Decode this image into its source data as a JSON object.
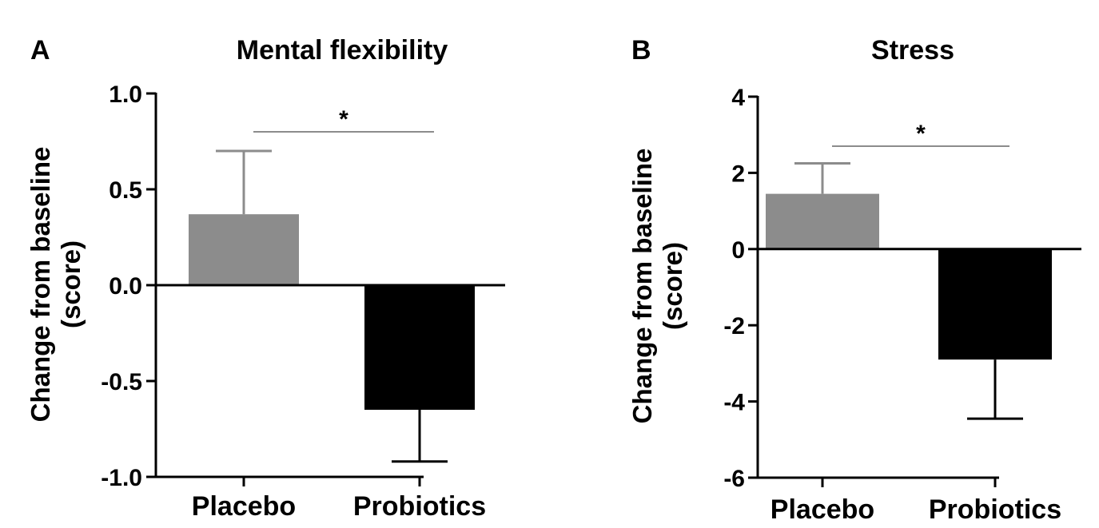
{
  "chart_data": [
    {
      "type": "bar",
      "panel_label": "A",
      "title": "Mental flexibility",
      "ylabel_line1": "Change from baseline",
      "ylabel_line2": "(score)",
      "xlabel": "",
      "categories": [
        "Placebo",
        "Probiotics"
      ],
      "values": [
        0.37,
        -0.65
      ],
      "error_bars": [
        0.33,
        0.27
      ],
      "bar_colors": [
        "#8c8c8c",
        "#000000"
      ],
      "ylim": [
        -1.0,
        1.0
      ],
      "yticks": [
        1.0,
        0.5,
        0.0,
        -0.5,
        -1.0
      ],
      "ytick_labels": [
        "1.0",
        "0.5",
        "0.0",
        "-0.5",
        "-1.0"
      ],
      "significance": {
        "between": [
          "Placebo",
          "Probiotics"
        ],
        "y": 0.8,
        "label": "*"
      },
      "grid": false
    },
    {
      "type": "bar",
      "panel_label": "B",
      "title": "Stress",
      "ylabel_line1": "Change from baseline",
      "ylabel_line2": "(score)",
      "xlabel": "",
      "categories": [
        "Placebo",
        "Probiotics"
      ],
      "values": [
        1.45,
        -2.9
      ],
      "error_bars": [
        0.8,
        1.55
      ],
      "bar_colors": [
        "#8c8c8c",
        "#000000"
      ],
      "ylim": [
        -6,
        4
      ],
      "yticks": [
        4,
        2,
        0,
        -2,
        -4,
        -6
      ],
      "ytick_labels": [
        "4",
        "2",
        "0",
        "-2",
        "-4",
        "-6"
      ],
      "significance": {
        "between": [
          "Placebo",
          "Probiotics"
        ],
        "y": 2.7,
        "label": "*"
      },
      "grid": false
    }
  ]
}
